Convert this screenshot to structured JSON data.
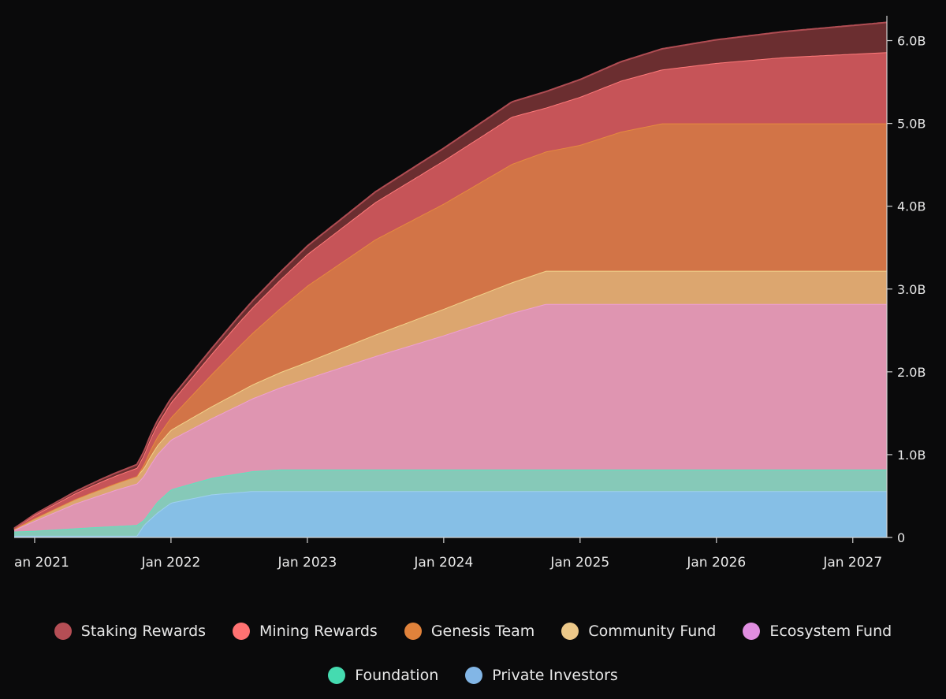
{
  "chart_data": {
    "type": "area",
    "stacked": true,
    "title": "",
    "xlabel": "",
    "ylabel": "",
    "x_tick_labels": [
      "an 2021",
      "Jan 2022",
      "Jan 2023",
      "Jan 2024",
      "Jan 2025",
      "Jan 2026",
      "Jan 2027"
    ],
    "x_tick_years": [
      2021,
      2022,
      2023,
      2024,
      2025,
      2026,
      2027
    ],
    "x_range": [
      2020.85,
      2027.25
    ],
    "y_tick_labels": [
      "0",
      "1.0B",
      "2.0B",
      "3.0B",
      "4.0B",
      "5.0B",
      "6.0B"
    ],
    "y_tick_values": [
      0,
      1,
      2,
      3,
      4,
      5,
      6
    ],
    "ylim": [
      0,
      6.3
    ],
    "value_unit": "billions",
    "series": [
      {
        "name": "Private Investors",
        "color": "#86bfe6",
        "line_color": "#9fd0f0",
        "points": [
          [
            2020.85,
            0.02
          ],
          [
            2021.75,
            0.02
          ],
          [
            2021.8,
            0.15
          ],
          [
            2021.9,
            0.3
          ],
          [
            2022.0,
            0.42
          ],
          [
            2022.3,
            0.52
          ],
          [
            2022.6,
            0.56
          ],
          [
            2027.25,
            0.56
          ]
        ]
      },
      {
        "name": "Foundation",
        "color": "#86c9b8",
        "line_color": "#5fe3bd",
        "points": [
          [
            2020.85,
            0.05
          ],
          [
            2021.0,
            0.06
          ],
          [
            2021.4,
            0.1
          ],
          [
            2021.75,
            0.13
          ],
          [
            2021.8,
            0.06
          ],
          [
            2021.9,
            0.13
          ],
          [
            2022.0,
            0.16
          ],
          [
            2022.3,
            0.2
          ],
          [
            2022.6,
            0.24
          ],
          [
            2022.8,
            0.26
          ],
          [
            2027.25,
            0.26
          ]
        ]
      },
      {
        "name": "Ecosystem Fund",
        "color": "#df95b1",
        "line_color": "#ee9fd4",
        "points": [
          [
            2020.85,
            0.02
          ],
          [
            2021.0,
            0.12
          ],
          [
            2021.3,
            0.3
          ],
          [
            2021.6,
            0.44
          ],
          [
            2021.75,
            0.5
          ],
          [
            2021.85,
            0.56
          ],
          [
            2022.0,
            0.6
          ],
          [
            2022.3,
            0.72
          ],
          [
            2022.6,
            0.88
          ],
          [
            2023.0,
            1.1
          ],
          [
            2023.5,
            1.37
          ],
          [
            2024.0,
            1.62
          ],
          [
            2024.5,
            1.89
          ],
          [
            2024.75,
            2.0
          ],
          [
            2027.25,
            2.0
          ]
        ]
      },
      {
        "name": "Community Fund",
        "color": "#dca66f",
        "line_color": "#f2d28a",
        "points": [
          [
            2020.85,
            0.01
          ],
          [
            2021.0,
            0.03
          ],
          [
            2021.5,
            0.07
          ],
          [
            2021.75,
            0.09
          ],
          [
            2022.0,
            0.12
          ],
          [
            2022.5,
            0.16
          ],
          [
            2023.0,
            0.2
          ],
          [
            2023.5,
            0.26
          ],
          [
            2024.0,
            0.32
          ],
          [
            2024.5,
            0.37
          ],
          [
            2024.75,
            0.4
          ],
          [
            2027.25,
            0.4
          ]
        ]
      },
      {
        "name": "Genesis Team",
        "color": "#d27447",
        "line_color": "#e58a3f",
        "points": [
          [
            2020.85,
            0.0
          ],
          [
            2021.75,
            0.0
          ],
          [
            2021.85,
            0.08
          ],
          [
            2022.0,
            0.15
          ],
          [
            2022.5,
            0.55
          ],
          [
            2023.0,
            0.92
          ],
          [
            2023.5,
            1.15
          ],
          [
            2024.0,
            1.27
          ],
          [
            2024.5,
            1.43
          ],
          [
            2024.75,
            1.44
          ],
          [
            2025.0,
            1.52
          ],
          [
            2025.3,
            1.68
          ],
          [
            2025.6,
            1.78
          ],
          [
            2027.25,
            1.78
          ]
        ]
      },
      {
        "name": "Mining Rewards",
        "color": "#c65458",
        "line_color": "#ff7a7a",
        "points": [
          [
            2020.85,
            0.01
          ],
          [
            2021.0,
            0.04
          ],
          [
            2021.5,
            0.09
          ],
          [
            2021.75,
            0.1
          ],
          [
            2022.0,
            0.18
          ],
          [
            2022.5,
            0.29
          ],
          [
            2023.0,
            0.38
          ],
          [
            2023.5,
            0.45
          ],
          [
            2024.0,
            0.52
          ],
          [
            2024.5,
            0.57
          ],
          [
            2024.75,
            0.53
          ],
          [
            2025.0,
            0.58
          ],
          [
            2025.6,
            0.65
          ],
          [
            2026.0,
            0.73
          ],
          [
            2026.5,
            0.8
          ],
          [
            2027.25,
            0.86
          ]
        ]
      },
      {
        "name": "Staking Rewards",
        "color": "#6b2e30",
        "line_color": "#b04d53",
        "points": [
          [
            2020.85,
            0.0
          ],
          [
            2021.0,
            0.01
          ],
          [
            2022.0,
            0.05
          ],
          [
            2023.0,
            0.1
          ],
          [
            2024.0,
            0.15
          ],
          [
            2025.0,
            0.21
          ],
          [
            2025.6,
            0.25
          ],
          [
            2026.0,
            0.28
          ],
          [
            2026.5,
            0.31
          ],
          [
            2027.25,
            0.36
          ]
        ]
      }
    ]
  },
  "legend": {
    "row1": [
      {
        "label": "Staking Rewards",
        "color": "#b54e55"
      },
      {
        "label": "Mining Rewards",
        "color": "#ff7272"
      },
      {
        "label": "Genesis Team",
        "color": "#e0823b"
      },
      {
        "label": "Community Fund",
        "color": "#ecc889"
      },
      {
        "label": "Ecosystem Fund",
        "color": "#e08ee0"
      }
    ],
    "row2": [
      {
        "label": "Foundation",
        "color": "#45dbb0"
      },
      {
        "label": "Private Investors",
        "color": "#82b6e6"
      }
    ]
  }
}
